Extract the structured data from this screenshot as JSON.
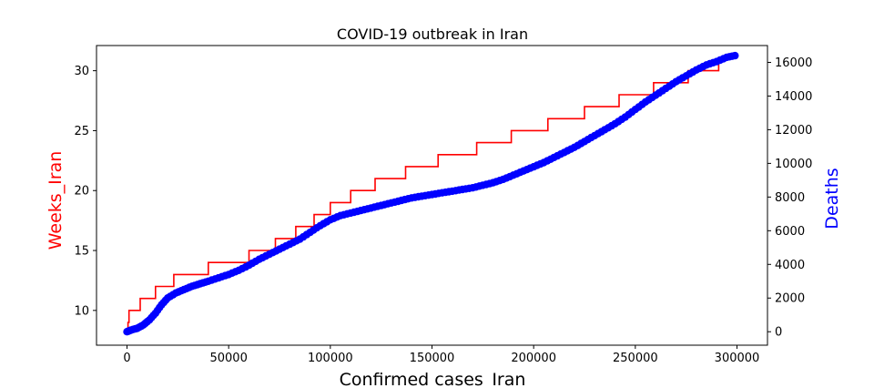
{
  "chart_data": {
    "type": "line",
    "title": "COVID-19 outbreak in Iran",
    "xlabel": "Confirmed cases_Iran",
    "ylabel": "Weeks_Iran",
    "y2label": "Deaths",
    "xlim": [
      -15000,
      315000
    ],
    "ylim": [
      7.1,
      32.1
    ],
    "y2lim": [
      -800,
      17000
    ],
    "x_ticks": [
      0,
      50000,
      100000,
      150000,
      200000,
      250000,
      300000
    ],
    "y_ticks": [
      10,
      15,
      20,
      25,
      30
    ],
    "y2_ticks": [
      0,
      2000,
      4000,
      6000,
      8000,
      10000,
      12000,
      14000,
      16000
    ],
    "colors": {
      "weeks": "#ff0000",
      "deaths": "#0000ff",
      "axis": "#000000"
    },
    "grid": false,
    "series": [
      {
        "name": "Weeks_Iran",
        "axis": "left",
        "style": "step",
        "x": [
          0,
          500,
          1000,
          6500,
          14000,
          23000,
          40000,
          60000,
          73000,
          83000,
          92000,
          100000,
          110000,
          122000,
          137000,
          153000,
          172000,
          189000,
          207000,
          225000,
          242000,
          259000,
          276000,
          291000,
          298000
        ],
        "y": [
          8,
          9,
          10,
          11,
          12,
          13,
          14,
          15,
          16,
          17,
          18,
          19,
          20,
          21,
          22,
          23,
          24,
          25,
          26,
          27,
          28,
          29,
          30,
          31,
          31
        ]
      },
      {
        "name": "Deaths",
        "axis": "right",
        "style": "line-markers",
        "x": [
          0,
          2000,
          5000,
          8000,
          11000,
          14000,
          17000,
          20000,
          24000,
          28000,
          32000,
          36000,
          40000,
          45000,
          50000,
          55000,
          60000,
          65000,
          70000,
          75000,
          80000,
          85000,
          90000,
          95000,
          100000,
          105000,
          110000,
          115000,
          120000,
          125000,
          130000,
          135000,
          140000,
          145000,
          150000,
          155000,
          160000,
          165000,
          170000,
          175000,
          180000,
          185000,
          190000,
          195000,
          200000,
          205000,
          210000,
          215000,
          220000,
          225000,
          230000,
          235000,
          240000,
          245000,
          250000,
          255000,
          260000,
          265000,
          270000,
          275000,
          280000,
          285000,
          290000,
          295000,
          299000
        ],
        "y": [
          0,
          100,
          200,
          400,
          700,
          1100,
          1600,
          2000,
          2300,
          2500,
          2700,
          2850,
          3000,
          3200,
          3400,
          3650,
          3950,
          4300,
          4600,
          4900,
          5200,
          5500,
          5900,
          6300,
          6650,
          6900,
          7050,
          7200,
          7350,
          7500,
          7650,
          7800,
          7950,
          8050,
          8150,
          8250,
          8350,
          8450,
          8550,
          8700,
          8850,
          9050,
          9300,
          9550,
          9800,
          10050,
          10350,
          10650,
          10950,
          11300,
          11650,
          12000,
          12350,
          12750,
          13200,
          13650,
          14050,
          14450,
          14850,
          15200,
          15550,
          15850,
          16050,
          16300,
          16400
        ]
      }
    ]
  }
}
